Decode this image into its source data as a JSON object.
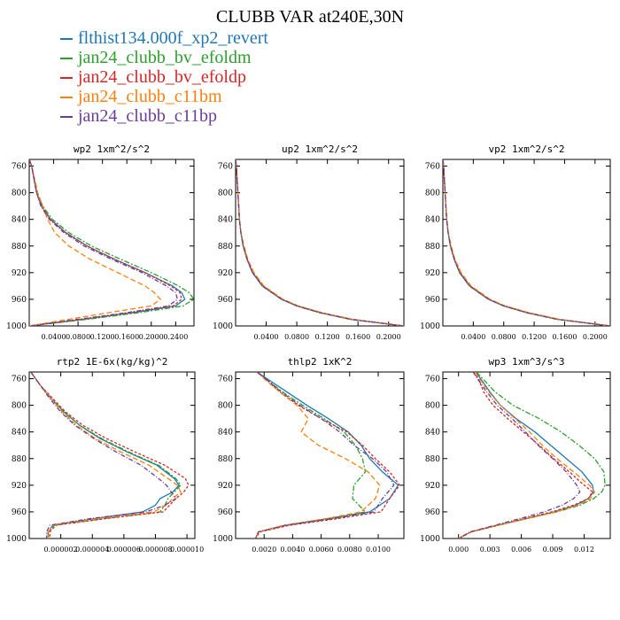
{
  "title": "CLUBB VAR at240E,30N",
  "colors": {
    "blue": "#1f77b4",
    "green": "#2ca02c",
    "red": "#d62728",
    "orange": "#ff7f0e",
    "purple": "#6a3d9a"
  },
  "legend": [
    {
      "label": "flthist134.000f_xp2_revert",
      "color": "#1f77b4"
    },
    {
      "label": "jan24_clubb_bv_efoldm",
      "color": "#2ca02c"
    },
    {
      "label": "jan24_clubb_bv_efoldp",
      "color": "#d62728"
    },
    {
      "label": "jan24_clubb_c11bm",
      "color": "#ff7f0e"
    },
    {
      "label": "jan24_clubb_c11bp",
      "color": "#6a3d9a"
    }
  ],
  "chart_data": [
    {
      "type": "line",
      "title": "wp2  1xm^2/s^2",
      "xlim": [
        0,
        0.27
      ],
      "ylim": [
        1000,
        750
      ],
      "xticks": [
        0.04,
        0.08,
        0.12,
        0.16,
        0.2,
        0.24
      ],
      "xtick_labels": [
        "0.0400",
        "0.0800",
        "0.1200",
        "0.1600",
        "0.2000",
        "0.2400"
      ],
      "yticks": [
        760,
        800,
        840,
        880,
        920,
        960,
        1000
      ],
      "y": [
        750,
        760,
        780,
        800,
        820,
        840,
        860,
        880,
        900,
        920,
        940,
        950,
        960,
        970,
        980,
        990,
        1000
      ],
      "series": [
        {
          "values": [
            0.0,
            0.004,
            0.008,
            0.012,
            0.02,
            0.035,
            0.06,
            0.095,
            0.14,
            0.19,
            0.235,
            0.25,
            0.255,
            0.24,
            0.17,
            0.09,
            0.0
          ]
        },
        {
          "values": [
            0.0,
            0.004,
            0.008,
            0.013,
            0.022,
            0.038,
            0.065,
            0.102,
            0.15,
            0.2,
            0.245,
            0.262,
            0.27,
            0.252,
            0.18,
            0.095,
            0.0
          ]
        },
        {
          "values": [
            0.0,
            0.004,
            0.008,
            0.012,
            0.02,
            0.035,
            0.06,
            0.095,
            0.14,
            0.19,
            0.232,
            0.247,
            0.25,
            0.236,
            0.165,
            0.085,
            0.0
          ]
        },
        {
          "values": [
            0.0,
            0.004,
            0.009,
            0.014,
            0.022,
            0.03,
            0.042,
            0.065,
            0.1,
            0.145,
            0.19,
            0.205,
            0.215,
            0.2,
            0.13,
            0.065,
            0.0
          ]
        },
        {
          "values": [
            0.0,
            0.004,
            0.008,
            0.012,
            0.019,
            0.033,
            0.057,
            0.09,
            0.135,
            0.185,
            0.225,
            0.24,
            0.243,
            0.228,
            0.16,
            0.08,
            0.0
          ]
        }
      ]
    },
    {
      "type": "line",
      "title": "up2  1xm^2/s^2",
      "xlim": [
        0,
        0.22
      ],
      "ylim": [
        1000,
        750
      ],
      "xticks": [
        0.04,
        0.08,
        0.12,
        0.16,
        0.2
      ],
      "xtick_labels": [
        "0.0400",
        "0.0800",
        "0.1200",
        "0.1600",
        "0.2000"
      ],
      "yticks": [
        760,
        800,
        840,
        880,
        920,
        960,
        1000
      ],
      "y": [
        750,
        760,
        780,
        800,
        820,
        840,
        860,
        880,
        900,
        920,
        940,
        960,
        970,
        980,
        990,
        1000
      ],
      "series": [
        {
          "values": [
            0.0,
            0.001,
            0.002,
            0.003,
            0.004,
            0.005,
            0.007,
            0.01,
            0.015,
            0.022,
            0.035,
            0.06,
            0.08,
            0.11,
            0.15,
            0.22
          ]
        },
        {
          "values": [
            0.0,
            0.001,
            0.002,
            0.003,
            0.004,
            0.005,
            0.007,
            0.01,
            0.015,
            0.022,
            0.035,
            0.06,
            0.08,
            0.11,
            0.15,
            0.22
          ]
        },
        {
          "values": [
            0.0,
            0.001,
            0.002,
            0.003,
            0.004,
            0.005,
            0.007,
            0.01,
            0.015,
            0.023,
            0.036,
            0.061,
            0.081,
            0.112,
            0.152,
            0.22
          ]
        },
        {
          "values": [
            0.0,
            0.001,
            0.002,
            0.003,
            0.004,
            0.005,
            0.007,
            0.011,
            0.016,
            0.024,
            0.037,
            0.062,
            0.082,
            0.113,
            0.153,
            0.22
          ]
        },
        {
          "values": [
            0.0,
            0.001,
            0.002,
            0.003,
            0.004,
            0.005,
            0.007,
            0.01,
            0.015,
            0.022,
            0.035,
            0.06,
            0.08,
            0.11,
            0.15,
            0.22
          ]
        }
      ]
    },
    {
      "type": "line",
      "title": "vp2  1xm^2/s^2",
      "xlim": [
        0,
        0.22
      ],
      "ylim": [
        1000,
        750
      ],
      "xticks": [
        0.04,
        0.08,
        0.12,
        0.16,
        0.2
      ],
      "xtick_labels": [
        "0.0400",
        "0.0800",
        "0.1200",
        "0.1600",
        "0.2000"
      ],
      "yticks": [
        760,
        800,
        840,
        880,
        920,
        960,
        1000
      ],
      "y": [
        750,
        760,
        780,
        800,
        820,
        840,
        860,
        880,
        900,
        920,
        940,
        960,
        970,
        980,
        990,
        1000
      ],
      "series": [
        {
          "values": [
            0.0,
            0.001,
            0.002,
            0.003,
            0.004,
            0.005,
            0.007,
            0.01,
            0.015,
            0.022,
            0.035,
            0.06,
            0.08,
            0.11,
            0.15,
            0.22
          ]
        },
        {
          "values": [
            0.0,
            0.001,
            0.002,
            0.003,
            0.004,
            0.005,
            0.007,
            0.01,
            0.015,
            0.022,
            0.035,
            0.06,
            0.08,
            0.11,
            0.15,
            0.22
          ]
        },
        {
          "values": [
            0.0,
            0.001,
            0.002,
            0.003,
            0.004,
            0.005,
            0.007,
            0.01,
            0.015,
            0.023,
            0.036,
            0.061,
            0.081,
            0.112,
            0.152,
            0.22
          ]
        },
        {
          "values": [
            0.0,
            0.001,
            0.002,
            0.003,
            0.004,
            0.005,
            0.007,
            0.011,
            0.016,
            0.024,
            0.037,
            0.062,
            0.082,
            0.113,
            0.153,
            0.22
          ]
        },
        {
          "values": [
            0.0,
            0.001,
            0.002,
            0.003,
            0.004,
            0.005,
            0.007,
            0.01,
            0.015,
            0.022,
            0.035,
            0.06,
            0.08,
            0.11,
            0.15,
            0.22
          ]
        }
      ]
    },
    {
      "type": "line",
      "title": "rtp2  1E-6x(kg/kg)^2",
      "xlim": [
        0,
        1.05e-05
      ],
      "ylim": [
        1000,
        750
      ],
      "xticks": [
        2e-06,
        4e-06,
        6e-06,
        8e-06,
        1e-05
      ],
      "xtick_labels": [
        "0.000002",
        "0.000004",
        "0.000006",
        "0.000008",
        "0.000010"
      ],
      "yticks": [
        760,
        800,
        840,
        880,
        920,
        960,
        1000
      ],
      "y": [
        750,
        770,
        790,
        810,
        830,
        850,
        870,
        890,
        910,
        920,
        930,
        940,
        950,
        960,
        970,
        980,
        990,
        1000
      ],
      "series": [
        {
          "values": [
            1e-07,
            7e-07,
            1.4e-06,
            2.2e-06,
            3.2e-06,
            4.5e-06,
            6.2e-06,
            8.1e-06,
            9.2e-06,
            9.5e-06,
            9.1e-06,
            8.3e-06,
            8e-06,
            7.2e-06,
            4.2e-06,
            1.5e-06,
            1.2e-06,
            1.2e-06
          ]
        },
        {
          "values": [
            1e-07,
            7e-07,
            1.4e-06,
            2.2e-06,
            3.2e-06,
            4.6e-06,
            6.3e-06,
            8.2e-06,
            9.3e-06,
            9.6e-06,
            9.2e-06,
            8.8e-06,
            8.6e-06,
            8.3e-06,
            4.8e-06,
            1.6e-06,
            1.2e-06,
            1.2e-06
          ]
        },
        {
          "values": [
            1e-07,
            7e-07,
            1.5e-06,
            2.3e-06,
            3.4e-06,
            4.9e-06,
            6.7e-06,
            8.6e-06,
            9.9e-06,
            1.01e-05,
            9.8e-06,
            9.3e-06,
            8.9e-06,
            8.5e-06,
            4.9e-06,
            1.7e-06,
            1.3e-06,
            1.3e-06
          ]
        },
        {
          "values": [
            1e-07,
            7e-07,
            1.4e-06,
            2.1e-06,
            3e-06,
            4.2e-06,
            5.8e-06,
            7.6e-06,
            8.8e-06,
            9.4e-06,
            9.6e-06,
            9.1e-06,
            8.7e-06,
            7.9e-06,
            4.4e-06,
            1.5e-06,
            1.2e-06,
            1.2e-06
          ]
        },
        {
          "values": [
            1e-07,
            7e-07,
            1.3e-06,
            2e-06,
            2.9e-06,
            4.1e-06,
            5.5e-06,
            7.1e-06,
            8.2e-06,
            8.7e-06,
            9e-06,
            9.3e-06,
            8.6e-06,
            7.4e-06,
            3.9e-06,
            1.3e-06,
            1.1e-06,
            1.1e-06
          ]
        }
      ]
    },
    {
      "type": "line",
      "title": "thlp2  1xK^2",
      "xlim": [
        0,
        0.0118
      ],
      "ylim": [
        1000,
        750
      ],
      "xticks": [
        0.002,
        0.004,
        0.006,
        0.008,
        0.01
      ],
      "xtick_labels": [
        "0.0020",
        "0.0040",
        "0.0060",
        "0.0080",
        "0.0100"
      ],
      "yticks": [
        760,
        800,
        840,
        880,
        920,
        960,
        1000
      ],
      "y": [
        750,
        760,
        780,
        800,
        820,
        840,
        860,
        880,
        900,
        920,
        940,
        960,
        970,
        980,
        990,
        1000
      ],
      "series": [
        {
          "values": [
            0.0015,
            0.0022,
            0.0036,
            0.005,
            0.0065,
            0.0079,
            0.0088,
            0.0094,
            0.0103,
            0.0114,
            0.0108,
            0.0094,
            0.0065,
            0.0035,
            0.0016,
            0.0014
          ]
        },
        {
          "values": [
            0.0015,
            0.0021,
            0.0033,
            0.0047,
            0.0062,
            0.0076,
            0.0084,
            0.0089,
            0.0091,
            0.0083,
            0.0082,
            0.0091,
            0.0068,
            0.0036,
            0.0016,
            0.0014
          ]
        },
        {
          "values": [
            0.0015,
            0.0021,
            0.0031,
            0.0044,
            0.006,
            0.0078,
            0.0089,
            0.0098,
            0.0108,
            0.0115,
            0.0108,
            0.0102,
            0.0072,
            0.0038,
            0.0017,
            0.0014
          ]
        },
        {
          "values": [
            0.0015,
            0.002,
            0.0031,
            0.0043,
            0.0051,
            0.0046,
            0.0058,
            0.0077,
            0.0093,
            0.0101,
            0.0098,
            0.0088,
            0.0064,
            0.0034,
            0.0016,
            0.0014
          ]
        },
        {
          "values": [
            0.0015,
            0.0021,
            0.0032,
            0.0045,
            0.006,
            0.0073,
            0.0083,
            0.0096,
            0.0106,
            0.0111,
            0.0103,
            0.0097,
            0.0069,
            0.0035,
            0.0016,
            0.0014
          ]
        }
      ]
    },
    {
      "type": "line",
      "title": "wp3  1xm^3/s^3",
      "xlim": [
        -0.0015,
        0.0145
      ],
      "ylim": [
        1000,
        750
      ],
      "xticks": [
        0.0,
        0.003,
        0.006,
        0.009,
        0.012
      ],
      "xtick_labels": [
        "0.000",
        "0.003",
        "0.006",
        "0.009",
        "0.012"
      ],
      "yticks": [
        760,
        800,
        840,
        880,
        920,
        960,
        1000
      ],
      "y": [
        750,
        760,
        780,
        800,
        820,
        840,
        860,
        880,
        900,
        920,
        930,
        940,
        950,
        960,
        970,
        980,
        990,
        1000
      ],
      "series": [
        {
          "values": [
            0.0017,
            0.0021,
            0.003,
            0.004,
            0.0055,
            0.0073,
            0.0088,
            0.0103,
            0.0118,
            0.0128,
            0.0129,
            0.0124,
            0.0112,
            0.0092,
            0.0065,
            0.0038,
            0.0012,
            0.0
          ]
        },
        {
          "values": [
            0.0017,
            0.0023,
            0.0035,
            0.0052,
            0.0077,
            0.0098,
            0.0115,
            0.013,
            0.0139,
            0.014,
            0.0137,
            0.0129,
            0.0116,
            0.0094,
            0.0066,
            0.0038,
            0.0012,
            0.0
          ]
        },
        {
          "values": [
            0.0014,
            0.0019,
            0.0024,
            0.0033,
            0.0047,
            0.0062,
            0.0077,
            0.0091,
            0.0106,
            0.012,
            0.0128,
            0.0124,
            0.011,
            0.0089,
            0.0063,
            0.0037,
            0.0012,
            0.0
          ]
        },
        {
          "values": [
            0.0016,
            0.002,
            0.0029,
            0.004,
            0.0054,
            0.0068,
            0.008,
            0.0094,
            0.011,
            0.0125,
            0.013,
            0.0126,
            0.0114,
            0.0093,
            0.0066,
            0.0038,
            0.0012,
            0.0
          ]
        },
        {
          "values": [
            0.0014,
            0.0018,
            0.0027,
            0.0037,
            0.0051,
            0.0064,
            0.0076,
            0.009,
            0.0103,
            0.0113,
            0.0116,
            0.011,
            0.0099,
            0.0082,
            0.0059,
            0.0035,
            0.0011,
            0.0
          ]
        }
      ]
    }
  ]
}
